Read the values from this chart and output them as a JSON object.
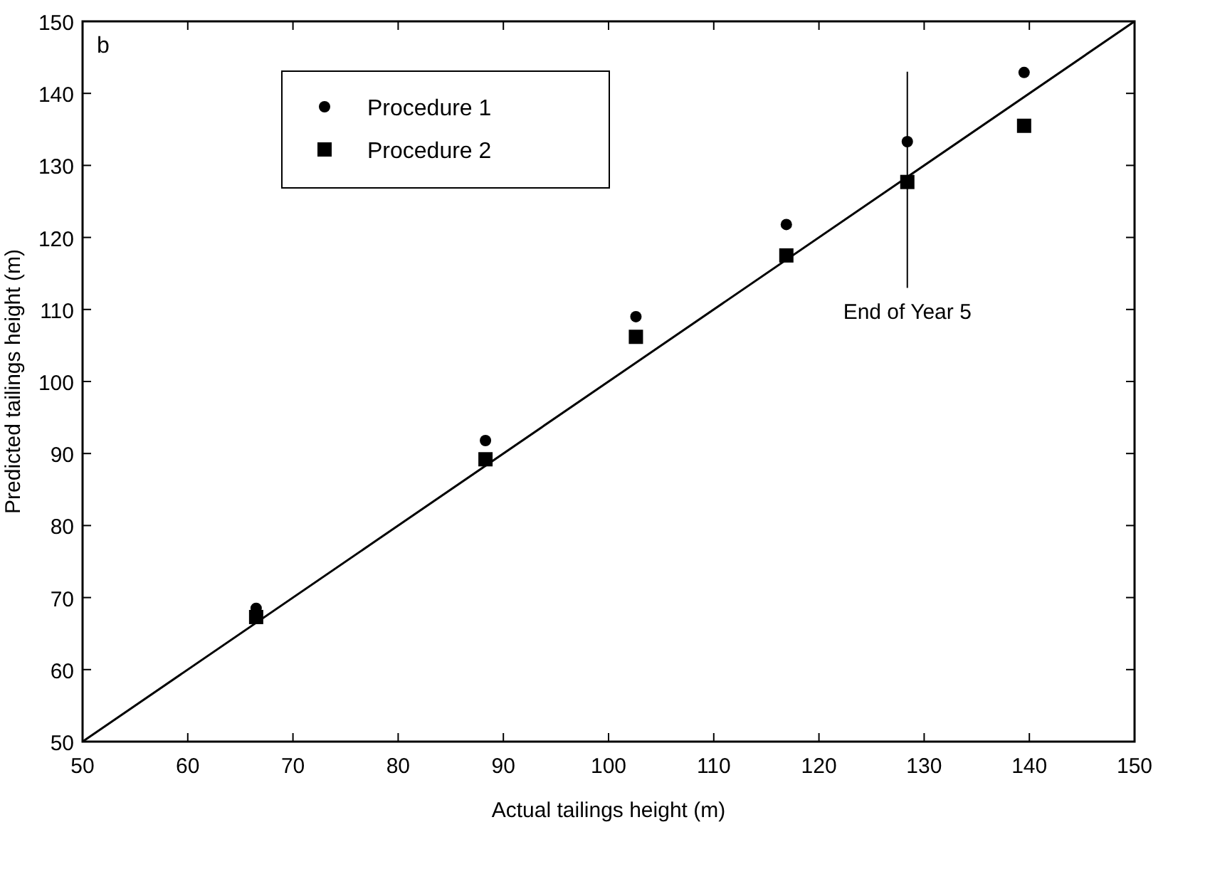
{
  "chart_data": {
    "type": "scatter",
    "xlabel": "Actual tailings height (m)",
    "ylabel": "Predicted tailings height (m)",
    "xlim": [
      50,
      150
    ],
    "ylim": [
      50,
      150
    ],
    "xticks": [
      50,
      60,
      70,
      80,
      90,
      100,
      110,
      120,
      130,
      140,
      150
    ],
    "yticks": [
      50,
      60,
      70,
      80,
      90,
      100,
      110,
      120,
      130,
      140,
      150
    ],
    "grid": false,
    "legend": "top left",
    "x": [
      66.5,
      88.3,
      102.6,
      116.9,
      128.4,
      139.5
    ],
    "series": [
      {
        "name": "Procedure 1",
        "color": "#000000",
        "marker": "circle",
        "values": [
          68.5,
          91.8,
          109,
          121.8,
          133.3,
          142.9
        ]
      },
      {
        "name": "Procedure 2",
        "color": "#000000",
        "marker": "square",
        "values": [
          67.3,
          89.2,
          106.2,
          117.5,
          127.7,
          135.5
        ]
      },
      {
        "type": "line",
        "color": "#000000",
        "x": [
          50,
          150
        ],
        "values": [
          50,
          150
        ],
        "marker": "none",
        "line_style": "solid"
      }
    ],
    "ref_lines": [
      {
        "axis": "x",
        "value": 128.4,
        "label": "End of Year 5",
        "color": "#000000"
      }
    ],
    "annotations": [
      "b"
    ]
  }
}
